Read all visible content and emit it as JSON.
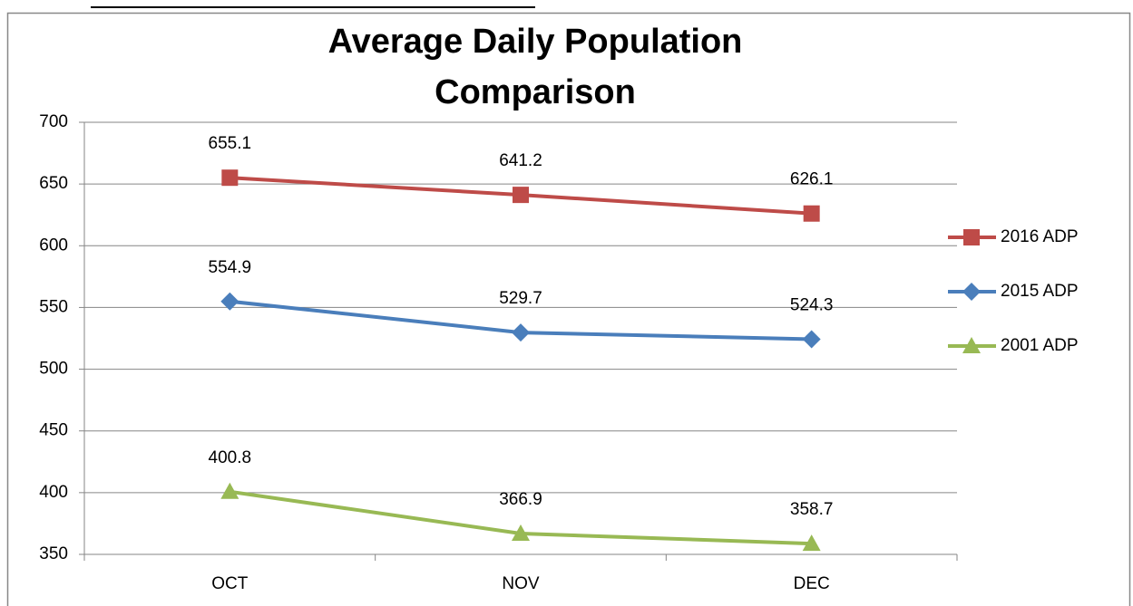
{
  "chart_data": {
    "type": "line",
    "title": "Average Daily Population Comparison",
    "categories": [
      "OCT",
      "NOV",
      "DEC"
    ],
    "series": [
      {
        "name": "2016 ADP",
        "color": "#BE4B48",
        "marker": "square",
        "values": [
          655.1,
          641.2,
          626.1
        ]
      },
      {
        "name": "2015 ADP",
        "color": "#4A7EBB",
        "marker": "diamond",
        "values": [
          554.9,
          529.7,
          524.3
        ]
      },
      {
        "name": "2001 ADP",
        "color": "#98B954",
        "marker": "triangle",
        "values": [
          400.8,
          366.9,
          358.7
        ]
      }
    ],
    "ylim": [
      350,
      700
    ],
    "yticks": [
      350,
      400,
      450,
      500,
      550,
      600,
      650,
      700
    ],
    "grid": true,
    "legend": "right"
  }
}
